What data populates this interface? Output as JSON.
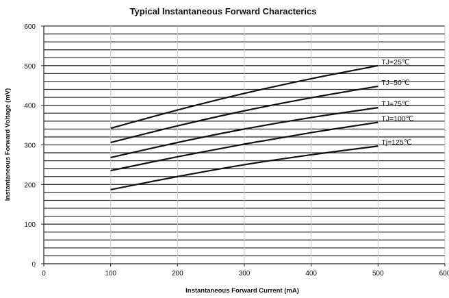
{
  "chart_data": {
    "type": "line",
    "title": "Typical Instantaneous Forward Characterics",
    "xlabel": "Instantaneous Forward Current (mA)",
    "ylabel": "Instantaneous Forward Voltage (mV)",
    "xlim": [
      0,
      600
    ],
    "ylim": [
      0,
      600
    ],
    "xticks": [
      0,
      100,
      200,
      300,
      400,
      500,
      600
    ],
    "yticks": [
      0,
      100,
      200,
      300,
      400,
      500,
      600
    ],
    "grid": "horizontal",
    "series": [
      {
        "name": "TJ=25℃",
        "x": [
          100,
          200,
          300,
          400,
          500
        ],
        "y": [
          342,
          388,
          430,
          467,
          500
        ]
      },
      {
        "name": "TJ=50℃",
        "x": [
          100,
          200,
          300,
          400,
          500
        ],
        "y": [
          306,
          348,
          386,
          419,
          448
        ]
      },
      {
        "name": "TJ=75℃",
        "x": [
          100,
          200,
          300,
          400,
          500
        ],
        "y": [
          268,
          306,
          340,
          369,
          394
        ]
      },
      {
        "name": "TJ=100℃",
        "x": [
          100,
          200,
          300,
          400,
          500
        ],
        "y": [
          235,
          270,
          302,
          331,
          357
        ]
      },
      {
        "name": "Tj=125℃",
        "x": [
          100,
          200,
          300,
          400,
          500
        ],
        "y": [
          187,
          220,
          250,
          275,
          297
        ]
      }
    ]
  }
}
